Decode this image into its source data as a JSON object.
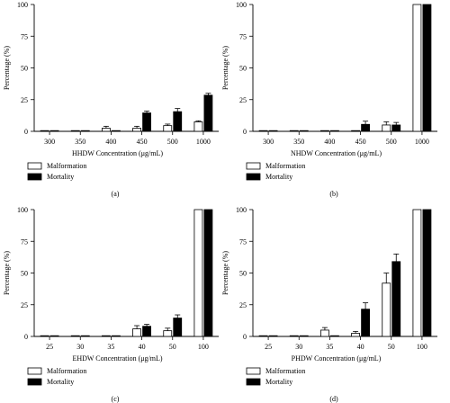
{
  "legend": {
    "entries": [
      "Malformation",
      "Mortality"
    ]
  },
  "chart_data": [
    {
      "type": "bar",
      "panel_label": "(a)",
      "categories": [
        "300",
        "350",
        "400",
        "450",
        "500",
        "1000"
      ],
      "xlabel": "HHDW Concentration (μg/mL)",
      "ylabel": "Percentage (%)",
      "ylim": [
        0,
        100
      ],
      "yticks": [
        0,
        25,
        50,
        75,
        100
      ],
      "series": [
        {
          "name": "Malformation",
          "values": [
            0,
            0,
            2.5,
            2.5,
            4.5,
            7.5
          ],
          "errors": [
            0,
            0,
            1.5,
            1.5,
            1.2,
            0.8
          ]
        },
        {
          "name": "Mortality",
          "values": [
            0,
            0,
            0,
            14.5,
            15.5,
            28.5
          ],
          "errors": [
            0,
            0,
            0,
            1.5,
            2.5,
            1.5
          ]
        }
      ]
    },
    {
      "type": "bar",
      "panel_label": "(b)",
      "categories": [
        "300",
        "350",
        "400",
        "450",
        "500",
        "1000"
      ],
      "xlabel": "NHDW Concentration (μg/mL)",
      "ylabel": "Percentage (%)",
      "ylim": [
        0,
        100
      ],
      "yticks": [
        0,
        25,
        50,
        75,
        100
      ],
      "series": [
        {
          "name": "Malformation",
          "values": [
            0,
            0,
            0,
            0,
            5,
            100
          ],
          "errors": [
            0,
            0,
            0,
            0,
            2.5,
            0
          ]
        },
        {
          "name": "Mortality",
          "values": [
            0,
            0,
            0,
            5.5,
            5,
            100
          ],
          "errors": [
            0,
            0,
            0,
            2.5,
            2,
            0
          ]
        }
      ]
    },
    {
      "type": "bar",
      "panel_label": "(c)",
      "categories": [
        "25",
        "30",
        "35",
        "40",
        "50",
        "100"
      ],
      "xlabel": "EHDW Concentration (μg/mL)",
      "ylabel": "Percentage (%)",
      "ylim": [
        0,
        100
      ],
      "yticks": [
        0,
        25,
        50,
        75,
        100
      ],
      "series": [
        {
          "name": "Malformation",
          "values": [
            0,
            0,
            0,
            6,
            4.5,
            100
          ],
          "errors": [
            0,
            0,
            0,
            2.5,
            2,
            0
          ]
        },
        {
          "name": "Mortality",
          "values": [
            0,
            0,
            0,
            8,
            14.5,
            100
          ],
          "errors": [
            0,
            0,
            0,
            1.5,
            2.5,
            0
          ]
        }
      ]
    },
    {
      "type": "bar",
      "panel_label": "(d)",
      "categories": [
        "25",
        "30",
        "35",
        "40",
        "50",
        "100"
      ],
      "xlabel": "PHDW Concentration (μg/mL)",
      "ylabel": "Percentage (%)",
      "ylim": [
        0,
        100
      ],
      "yticks": [
        0,
        25,
        50,
        75,
        100
      ],
      "series": [
        {
          "name": "Malformation",
          "values": [
            0,
            0,
            5,
            2.5,
            42,
            100
          ],
          "errors": [
            0,
            0,
            2,
            1.5,
            8,
            0
          ]
        },
        {
          "name": "Mortality",
          "values": [
            0,
            0,
            0,
            21.5,
            59,
            100
          ],
          "errors": [
            0,
            0,
            0,
            5,
            6,
            0
          ]
        }
      ]
    }
  ]
}
